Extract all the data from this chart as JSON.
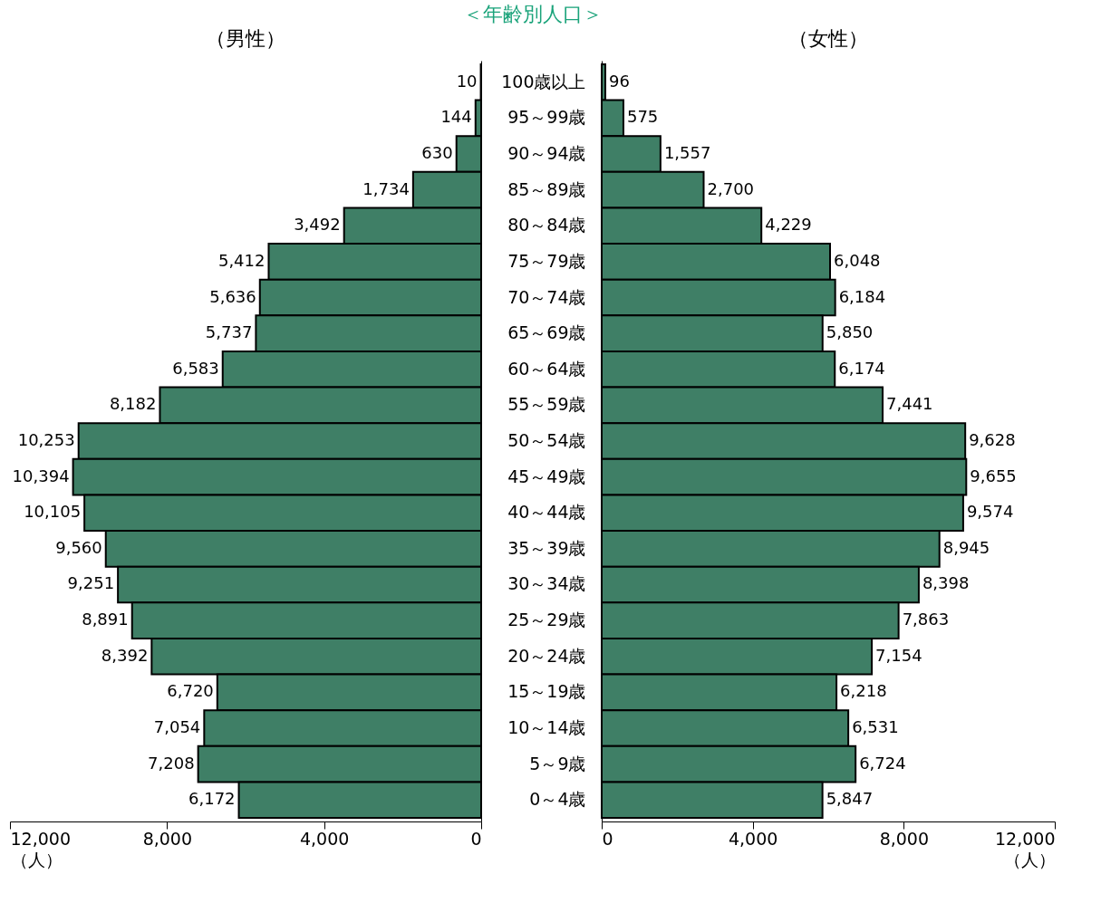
{
  "chart_data": [
    {
      "type": "bar",
      "orientation": "horizontal",
      "title": "＜年齢別人口＞",
      "subtitle": "（男性）",
      "xlabel": "（人）",
      "categories": [
        "100歳以上",
        "95～99歳",
        "90～94歳",
        "85～89歳",
        "80～84歳",
        "75～79歳",
        "70～74歳",
        "65～69歳",
        "60～64歳",
        "55～59歳",
        "50～54歳",
        "45～49歳",
        "40～44歳",
        "35～39歳",
        "30～34歳",
        "25～29歳",
        "20～24歳",
        "15～19歳",
        "10～14歳",
        "5～9歳",
        "0～4歳"
      ],
      "values": [
        10,
        144,
        630,
        1734,
        3492,
        5412,
        5636,
        5737,
        6583,
        8182,
        10253,
        10394,
        10105,
        9560,
        9251,
        8891,
        8392,
        6720,
        7054,
        7208,
        6172
      ],
      "value_labels": [
        "10",
        "144",
        "630",
        "1,734",
        "3,492",
        "5,412",
        "5,636",
        "5,737",
        "6,583",
        "8,182",
        "10,253",
        "10,394",
        "10,105",
        "9,560",
        "9,251",
        "8,891",
        "8,392",
        "6,720",
        "7,054",
        "7,208",
        "6,172"
      ],
      "color": "#3f7f66",
      "xlim": [
        12000,
        0
      ],
      "xticks": [
        {
          "value": 12000,
          "label": "12,000"
        },
        {
          "value": 8000,
          "label": "8,000"
        },
        {
          "value": 4000,
          "label": "4,000"
        },
        0
      ],
      "tick_labels": "x",
      "grid": false,
      "legend": false
    },
    {
      "type": "bar",
      "orientation": "horizontal",
      "subtitle": "（女性）",
      "xlabel": "（人）",
      "categories": [
        "100歳以上",
        "95～99歳",
        "90～94歳",
        "85～89歳",
        "80～84歳",
        "75～79歳",
        "70～74歳",
        "65～69歳",
        "60～64歳",
        "55～59歳",
        "50～54歳",
        "45～49歳",
        "40～44歳",
        "35～39歳",
        "30～34歳",
        "25～29歳",
        "20～24歳",
        "15～19歳",
        "10～14歳",
        "5～9歳",
        "0～4歳"
      ],
      "values": [
        96,
        575,
        1557,
        2700,
        4229,
        6048,
        6184,
        5850,
        6174,
        7441,
        9628,
        9655,
        9574,
        8945,
        8398,
        7863,
        7154,
        6218,
        6531,
        6724,
        5847
      ],
      "value_labels": [
        "96",
        "575",
        "1,557",
        "2,700",
        "4,229",
        "6,048",
        "6,184",
        "5,850",
        "6,174",
        "7,441",
        "9,628",
        "9,655",
        "9,574",
        "8,945",
        "8,398",
        "7,863",
        "7,154",
        "6,218",
        "6,531",
        "6,724",
        "5,847"
      ],
      "color": "#3f7f66",
      "xlim": [
        0,
        12000
      ],
      "xticks": [
        0,
        {
          "value": 4000,
          "label": "4,000"
        },
        {
          "value": 8000,
          "label": "8,000"
        },
        {
          "value": 12000,
          "label": "12,000"
        }
      ],
      "grid": false,
      "legend": false
    }
  ]
}
